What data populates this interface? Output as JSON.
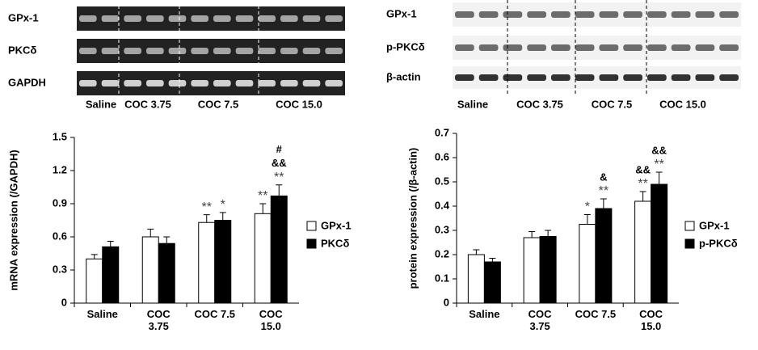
{
  "gels": [
    {
      "row_labels": [
        "GPx-1",
        "PKCδ",
        "GAPDH"
      ],
      "group_labels": [
        "Saline",
        "COC 3.75",
        "COC 7.5",
        "COC 15.0"
      ]
    },
    {
      "row_labels": [
        "GPx-1",
        "p-PKCδ",
        "β-actin"
      ],
      "group_labels": [
        "Saline",
        "COC 3.75",
        "COC 7.5",
        "COC 15.0"
      ]
    }
  ],
  "chart_data": [
    {
      "type": "bar",
      "ylabel": "mRNA expression (/GAPDH)",
      "categories": [
        "Saline",
        "COC\n3.75",
        "COC 7.5",
        "COC\n15.0"
      ],
      "series": [
        {
          "name": "GPx-1",
          "color": "#ffffff",
          "values": [
            0.4,
            0.6,
            0.73,
            0.81
          ],
          "errors": [
            0.04,
            0.07,
            0.07,
            0.09
          ],
          "annotations": [
            null,
            null,
            [
              "**"
            ],
            [
              "**"
            ]
          ]
        },
        {
          "name": "PKCδ",
          "color": "#000000",
          "values": [
            0.51,
            0.54,
            0.75,
            0.97
          ],
          "errors": [
            0.05,
            0.06,
            0.07,
            0.1
          ],
          "annotations": [
            null,
            null,
            [
              "*"
            ],
            [
              "#",
              "&&",
              "**"
            ]
          ]
        }
      ],
      "ylim": [
        0,
        1.5
      ],
      "yticks": [
        0,
        0.3,
        0.6,
        0.9,
        1.2,
        1.5
      ]
    },
    {
      "type": "bar",
      "ylabel": "protein expression (/β-actin)",
      "categories": [
        "Saline",
        "COC\n3.75",
        "COC 7.5",
        "COC\n15.0"
      ],
      "series": [
        {
          "name": "GPx-1",
          "color": "#ffffff",
          "values": [
            0.2,
            0.27,
            0.325,
            0.42
          ],
          "errors": [
            0.02,
            0.025,
            0.04,
            0.04
          ],
          "annotations": [
            null,
            null,
            [
              "*"
            ],
            [
              "&&",
              "**"
            ]
          ]
        },
        {
          "name": "p-PKCδ",
          "color": "#000000",
          "values": [
            0.17,
            0.275,
            0.39,
            0.49
          ],
          "errors": [
            0.015,
            0.025,
            0.04,
            0.05
          ],
          "annotations": [
            null,
            null,
            [
              "&",
              "**"
            ],
            [
              "&&",
              "**"
            ]
          ]
        }
      ],
      "ylim": [
        0,
        0.7
      ],
      "yticks": [
        0,
        0.1,
        0.2,
        0.3,
        0.4,
        0.5,
        0.6,
        0.7
      ]
    }
  ]
}
